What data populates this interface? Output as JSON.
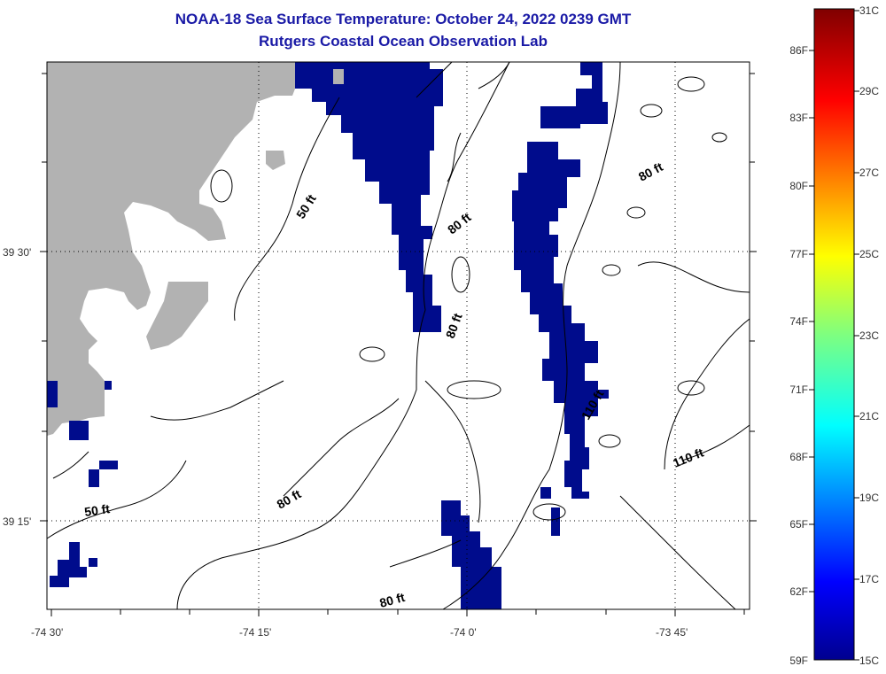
{
  "title": {
    "line1": "NOAA-18 Sea Surface Temperature:  October 24, 2022 0239 GMT",
    "line2": "Rutgers Coastal Ocean Observation Lab"
  },
  "map": {
    "lat_labels": [
      "39 30'",
      "39 15'"
    ],
    "lon_labels": [
      "-74 30'",
      "-74 15'",
      "-74 0'",
      "-73 45'"
    ],
    "depth_labels": [
      "50 ft",
      "80 ft",
      "80 ft",
      "80 ft",
      "110 ft",
      "110 ft",
      "50 ft",
      "80 ft",
      "80 ft"
    ],
    "colors": {
      "land": "#b2b2b2",
      "cold_pixel": "#000c8c",
      "contour": "#000000",
      "grid": "#000000"
    }
  },
  "colorbar": {
    "fahrenheit": [
      "86F",
      "83F",
      "80F",
      "77F",
      "74F",
      "71F",
      "68F",
      "65F",
      "62F",
      "59F"
    ],
    "celsius": [
      "31C",
      "29C",
      "27C",
      "25C",
      "23C",
      "21C",
      "19C",
      "17C",
      "15C"
    ]
  }
}
